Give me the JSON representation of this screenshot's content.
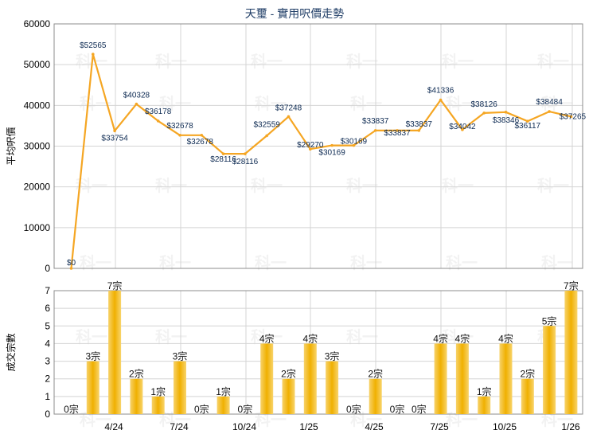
{
  "chart_data": [
    {
      "type": "line",
      "title": "天璽 - 實用呎價走勢",
      "ylabel": "平均呎價",
      "ylim": [
        0,
        60000
      ],
      "yticks": [
        "0",
        "10000",
        "20000",
        "30000",
        "40000",
        "50000",
        "60000"
      ],
      "grid": true,
      "color": "#f5a623",
      "values": [
        0,
        52565,
        33754,
        40328,
        36178,
        32678,
        32678,
        28116,
        28116,
        32559,
        37248,
        29270,
        30169,
        30169,
        33837,
        33837,
        33837,
        41336,
        34042,
        38126,
        38346,
        36117,
        38484,
        37265
      ],
      "labels": [
        "$0",
        "$52565",
        "$33754",
        "$40328",
        "$36178",
        "$32678",
        "$32678",
        "$28116",
        "$28116",
        "$32559",
        "$37248",
        "$29270",
        "$30169",
        "$30169",
        "$33837",
        "$33837",
        "$33837",
        "$41336",
        "$34042",
        "$38126",
        "$38346",
        "$36117",
        "$38484",
        "$37265"
      ]
    },
    {
      "type": "bar",
      "ylabel": "成交宗數",
      "ylim": [
        0,
        7
      ],
      "yticks": [
        "0",
        "1",
        "2",
        "3",
        "4",
        "5",
        "6",
        "7"
      ],
      "grid": true,
      "color": "#f0b000",
      "values": [
        0,
        3,
        7,
        2,
        1,
        3,
        0,
        1,
        0,
        4,
        2,
        4,
        3,
        0,
        2,
        0,
        0,
        4,
        4,
        1,
        4,
        2,
        5,
        7
      ],
      "labels": [
        "0宗",
        "3宗",
        "7宗",
        "2宗",
        "1宗",
        "3宗",
        "0宗",
        "1宗",
        "0宗",
        "4宗",
        "2宗",
        "4宗",
        "3宗",
        "0宗",
        "2宗",
        "0宗",
        "0宗",
        "4宗",
        "4宗",
        "1宗",
        "4宗",
        "2宗",
        "5宗",
        "7宗"
      ],
      "x_tick_labels": [
        "4/24",
        "7/24",
        "10/24",
        "1/25",
        "4/25",
        "7/25",
        "10/25",
        "1/26"
      ]
    }
  ],
  "watermark": "科一"
}
